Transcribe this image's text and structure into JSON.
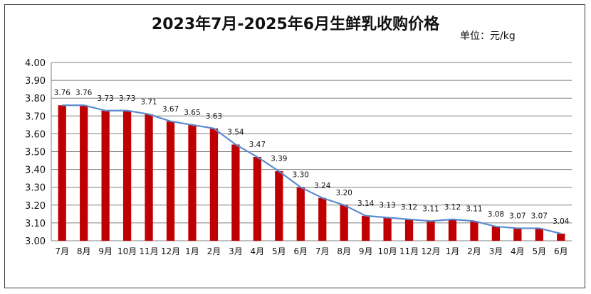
{
  "chart_data": {
    "type": "bar",
    "title": "2023年7月-2025年6月生鲜乳收购价格",
    "unit": "单位：元/kg",
    "categories": [
      "7月",
      "8月",
      "9月",
      "10月",
      "11月",
      "12月",
      "1月",
      "2月",
      "3月",
      "4月",
      "5月",
      "6月",
      "7月",
      "8月",
      "9月",
      "10月",
      "11月",
      "12月",
      "1月",
      "2月",
      "3月",
      "4月",
      "5月",
      "6月"
    ],
    "values": [
      3.76,
      3.76,
      3.73,
      3.73,
      3.71,
      3.67,
      3.65,
      3.63,
      3.54,
      3.47,
      3.39,
      3.3,
      3.24,
      3.2,
      3.14,
      3.13,
      3.12,
      3.11,
      3.12,
      3.11,
      3.08,
      3.07,
      3.07,
      3.04
    ],
    "ylim": [
      3.0,
      4.0
    ],
    "yticks": [
      "3.00",
      "3.10",
      "3.20",
      "3.30",
      "3.40",
      "3.50",
      "3.60",
      "3.70",
      "3.80",
      "3.90",
      "4.00"
    ],
    "grid": true,
    "overlay_line": true,
    "colors": {
      "bar": "#C00000",
      "line": "#5B8BD0",
      "grid": "#808080"
    }
  }
}
